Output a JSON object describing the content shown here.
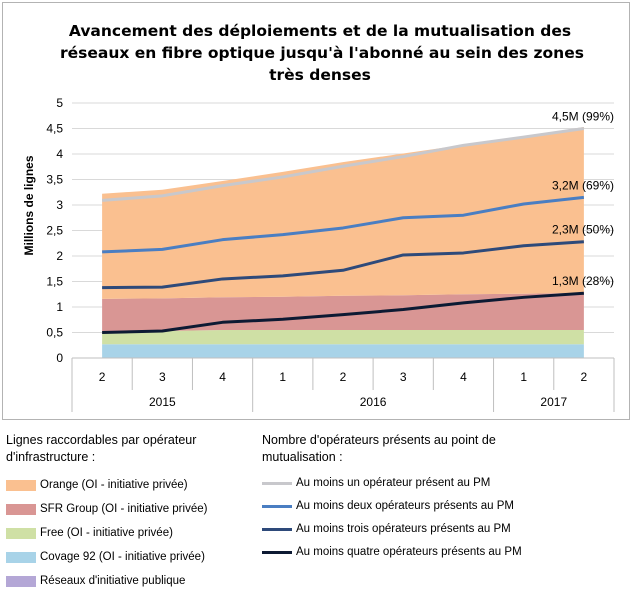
{
  "title_lines": [
    "Avancement des déploiements et de la mutualisation des",
    "réseaux en fibre optique jusqu'à l'abonné au sein des zones",
    "très denses"
  ],
  "chart_data": {
    "type": "area",
    "title": "Avancement des déploiements et de la mutualisation des réseaux en fibre optique jusqu'à l'abonné au sein des zones très denses",
    "ylabel": "Millions de lignes",
    "ylim": [
      0,
      5
    ],
    "yticks": [
      "0",
      "0,5",
      "1",
      "1,5",
      "2",
      "2,5",
      "3",
      "3,5",
      "4",
      "4,5",
      "5"
    ],
    "categories": [
      "2",
      "3",
      "4",
      "1",
      "2",
      "3",
      "4",
      "1",
      "2"
    ],
    "year_groups": [
      {
        "label": "2015",
        "span": 3
      },
      {
        "label": "2016",
        "span": 4
      },
      {
        "label": "2017",
        "span": 2
      }
    ],
    "grid": true,
    "stacked_areas": [
      {
        "name": "Réseaux d'initiative publique",
        "color": "#b4a7d6",
        "values": [
          0,
          0,
          0,
          0,
          0,
          0,
          0,
          0,
          0
        ]
      },
      {
        "name": "Covage 92 (OI - initiative privée)",
        "color": "#a8d3e8",
        "values": [
          0.27,
          0.27,
          0.27,
          0.27,
          0.27,
          0.27,
          0.27,
          0.27,
          0.27
        ]
      },
      {
        "name": "Free (OI - initiative privée)",
        "color": "#cfe0a5",
        "values": [
          0.26,
          0.26,
          0.28,
          0.28,
          0.28,
          0.28,
          0.28,
          0.28,
          0.28
        ]
      },
      {
        "name": "SFR Group (OI - initiative privée)",
        "color": "#d99694",
        "values": [
          0.63,
          0.64,
          0.64,
          0.65,
          0.67,
          0.68,
          0.7,
          0.71,
          0.73
        ]
      },
      {
        "name": "Orange (OI - initiative privée)",
        "color": "#fac090",
        "values": [
          2.06,
          2.13,
          2.28,
          2.45,
          2.62,
          2.78,
          2.93,
          3.08,
          3.25
        ]
      }
    ],
    "lines": [
      {
        "name": "Au moins un opérateur présent au PM",
        "color": "#c8c8cc",
        "values": [
          3.09,
          3.18,
          3.38,
          3.55,
          3.76,
          3.95,
          4.17,
          4.33,
          4.5
        ]
      },
      {
        "name": "Au moins deux opérateurs présents au PM",
        "color": "#4a7ec2",
        "values": [
          2.08,
          2.13,
          2.32,
          2.42,
          2.55,
          2.75,
          2.8,
          3.02,
          3.15
        ]
      },
      {
        "name": "Au moins trois opérateurs présents au PM",
        "color": "#2e4a7a",
        "values": [
          1.38,
          1.39,
          1.55,
          1.61,
          1.72,
          2.02,
          2.06,
          2.2,
          2.28
        ]
      },
      {
        "name": "Au moins quatre opérateurs présents au PM",
        "color": "#0d1a33",
        "values": [
          0.5,
          0.53,
          0.7,
          0.76,
          0.85,
          0.95,
          1.08,
          1.19,
          1.27
        ]
      }
    ],
    "annotations": [
      "4,5M (99%)",
      "3,2M (69%)",
      "2,3M (50%)",
      "1,3M (28%)"
    ]
  },
  "legend": {
    "left_title_lines": [
      "Lignes raccordables par opérateur",
      "d'infrastructure :"
    ],
    "right_title_lines": [
      "Nombre d'opérateurs présents au point de",
      "mutualisation :"
    ],
    "area_items": [
      {
        "label": "Orange (OI - initiative privée)",
        "color": "#fac090"
      },
      {
        "label": "SFR Group (OI - initiative privée)",
        "color": "#d99694"
      },
      {
        "label": "Free (OI - initiative privée)",
        "color": "#cfe0a5"
      },
      {
        "label": "Covage 92 (OI - initiative privée)",
        "color": "#a8d3e8"
      },
      {
        "label": "Réseaux d'initiative publique",
        "color": "#b4a7d6"
      }
    ],
    "line_items": [
      {
        "label": "Au moins un opérateur présent au PM",
        "color": "#c8c8cc"
      },
      {
        "label": "Au moins deux opérateurs présents au PM",
        "color": "#4a7ec2"
      },
      {
        "label": "Au moins trois opérateurs présents au PM",
        "color": "#2e4a7a"
      },
      {
        "label": "Au moins quatre opérateurs présents au PM",
        "color": "#0d1a33"
      }
    ]
  }
}
